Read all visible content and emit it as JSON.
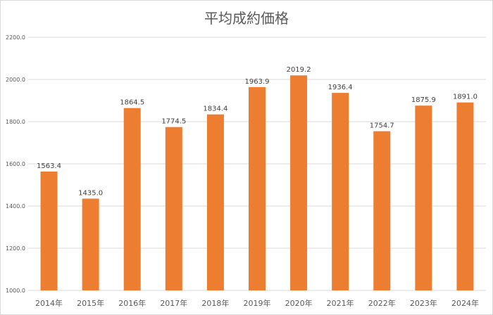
{
  "chart_data": {
    "type": "bar",
    "title": "平均成約価格",
    "categories": [
      "2014年",
      "2015年",
      "2016年",
      "2017年",
      "2018年",
      "2019年",
      "2020年",
      "2021年",
      "2022年",
      "2023年",
      "2024年"
    ],
    "values": [
      1563.4,
      1435.0,
      1864.5,
      1774.5,
      1834.4,
      1963.9,
      2019.2,
      1936.4,
      1754.7,
      1875.9,
      1891.0
    ],
    "value_labels": [
      "1563.4",
      "1435.0",
      "1864.5",
      "1774.5",
      "1834.4",
      "1963.9",
      "2019.2",
      "1936.4",
      "1754.7",
      "1875.9",
      "1891.0"
    ],
    "yticks": [
      1000,
      1200,
      1400,
      1600,
      1800,
      2000,
      2200
    ],
    "ytick_labels": [
      "1000.0",
      "1200.0",
      "1400.0",
      "1600.0",
      "1800.0",
      "2000.0",
      "2200.0"
    ],
    "ylim": [
      1000,
      2200
    ],
    "xlabel": "",
    "ylabel": "",
    "grid": true,
    "legend": "none",
    "bar_color": "#ED7D31"
  }
}
